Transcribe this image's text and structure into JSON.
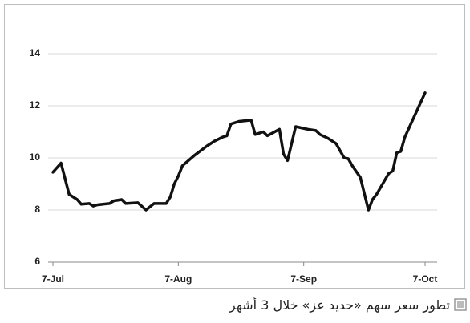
{
  "chart_data": {
    "type": "line",
    "color": "#111111",
    "grid": true,
    "caption": "تطور سعر سهم «حديد عز» خلال 3 أشهر",
    "x": [
      "7-Jul",
      "9-Jul",
      "11-Jul",
      "13-Jul",
      "14-Jul",
      "16-Jul",
      "17-Jul",
      "18-Jul",
      "21-Jul",
      "22-Jul",
      "24-Jul",
      "25-Jul",
      "28-Jul",
      "30-Jul",
      "1-Aug",
      "4-Aug",
      "5-Aug",
      "6-Aug",
      "7-Aug",
      "8-Aug",
      "11-Aug",
      "14-Aug",
      "16-Aug",
      "18-Aug",
      "19-Aug",
      "20-Aug",
      "22-Aug",
      "25-Aug",
      "26-Aug",
      "28-Aug",
      "29-Aug",
      "1-Sep",
      "2-Sep",
      "3-Sep",
      "5-Sep",
      "8-Sep",
      "10-Sep",
      "11-Sep",
      "13-Sep",
      "15-Sep",
      "17-Sep",
      "18-Sep",
      "19-Sep",
      "21-Sep",
      "23-Sep",
      "24-Sep",
      "25-Sep",
      "28-Sep",
      "29-Sep",
      "30-Sep",
      "1-Oct",
      "2-Oct",
      "7-Oct"
    ],
    "values": [
      9.45,
      9.8,
      8.6,
      8.4,
      8.22,
      8.25,
      8.15,
      8.2,
      8.25,
      8.35,
      8.4,
      8.25,
      8.28,
      8.0,
      8.25,
      8.25,
      8.5,
      9.0,
      9.3,
      9.7,
      10.1,
      10.45,
      10.65,
      10.8,
      10.85,
      11.3,
      11.4,
      11.45,
      10.9,
      11.0,
      10.85,
      11.1,
      10.15,
      9.9,
      11.2,
      11.1,
      11.05,
      10.9,
      10.75,
      10.55,
      10.0,
      9.97,
      9.7,
      9.25,
      8.0,
      8.4,
      8.6,
      9.4,
      9.5,
      10.2,
      10.25,
      10.8,
      12.5
    ],
    "xlim": [
      "7-Jul",
      "7-Oct"
    ],
    "xticks": [
      "7-Jul",
      "7-Aug",
      "7-Sep",
      "7-Oct"
    ],
    "ylim": [
      6,
      14
    ],
    "yticks": [
      6,
      8,
      10,
      12,
      14
    ]
  }
}
